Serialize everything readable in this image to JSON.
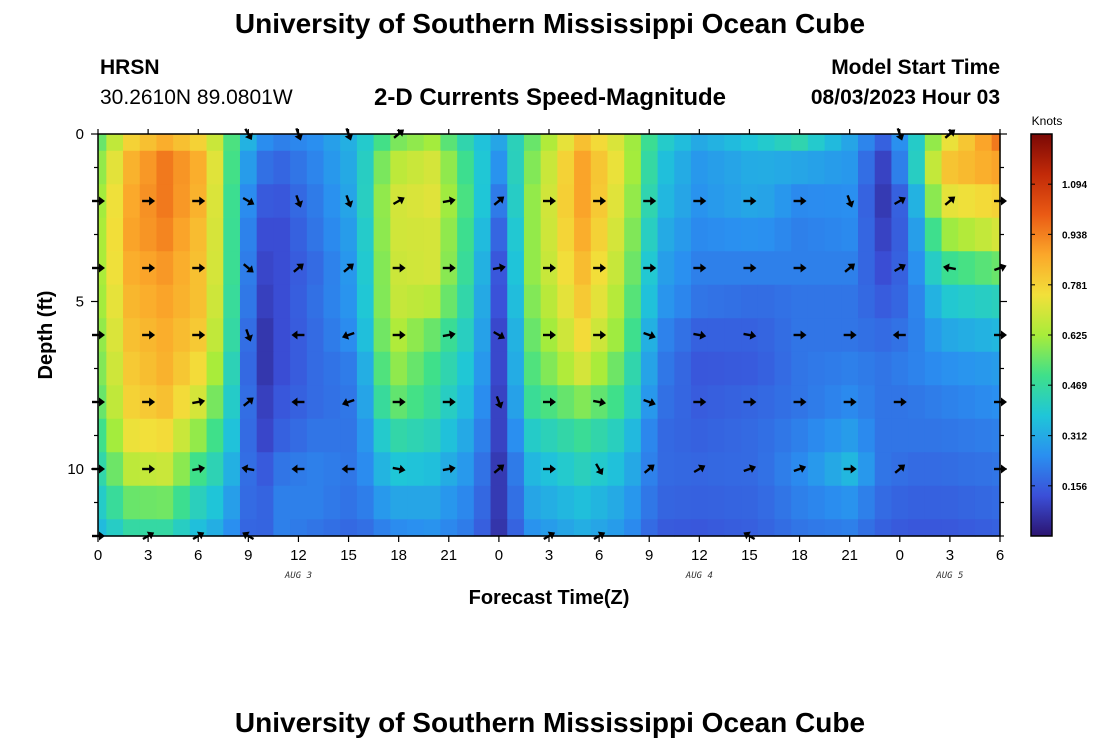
{
  "header": {
    "title": "University of Southern Mississippi Ocean Cube",
    "station_id": "HRSN",
    "station_coords": "30.2610N  89.0801W",
    "plot_title": "2-D Currents Speed-Magnitude",
    "model_start_label": "Model Start Time",
    "model_start_value": "08/03/2023 Hour 03"
  },
  "footer": {
    "title": "University of Southern Mississippi Ocean Cube"
  },
  "chart_data": {
    "type": "heatmap",
    "title": "2-D Currents Speed-Magnitude",
    "xlabel": "Forecast Time(Z)",
    "ylabel": "Depth (ft)",
    "xlim": [
      0,
      54
    ],
    "ylim": [
      0,
      12
    ],
    "x_ticks": [
      0,
      3,
      6,
      9,
      12,
      15,
      18,
      21,
      24,
      27,
      30,
      33,
      36,
      39,
      42,
      45,
      48,
      51,
      54
    ],
    "x_tick_labels": [
      "0",
      "3",
      "6",
      "9",
      "12",
      "15",
      "18",
      "21",
      "0",
      "3",
      "6",
      "9",
      "12",
      "15",
      "18",
      "21",
      "0",
      "3",
      "6"
    ],
    "y_ticks": [
      0,
      5,
      10
    ],
    "y_tick_labels": [
      "0",
      "5",
      "10"
    ],
    "date_labels": [
      {
        "x": 12,
        "text": "AUG 3"
      },
      {
        "x": 36,
        "text": "AUG 4"
      },
      {
        "x": 51,
        "text": "AUG 5"
      }
    ],
    "colorbar": {
      "units": "Knots",
      "ticks": [
        0.156,
        0.312,
        0.469,
        0.625,
        0.781,
        0.938,
        1.094
      ],
      "tick_labels": [
        "0.156",
        "0.312",
        "0.469",
        "0.625",
        "0.781",
        "0.938",
        "1.094"
      ],
      "range": [
        0,
        1.25
      ],
      "colors": [
        "#2b1470",
        "#3b4fd8",
        "#2a8ff0",
        "#1fc6d8",
        "#3fe08a",
        "#a8ec3a",
        "#f2e03a",
        "#fba72a",
        "#ea5a14",
        "#c22a08",
        "#7a0806"
      ]
    },
    "grid_times": [
      0,
      1,
      2,
      3,
      4,
      5,
      6,
      7,
      8,
      9,
      10,
      11,
      12,
      13,
      14,
      15,
      16,
      17,
      18,
      19,
      20,
      21,
      22,
      23,
      24,
      25,
      26,
      27,
      28,
      29,
      30,
      31,
      32,
      33,
      34,
      35,
      36,
      37,
      38,
      39,
      40,
      41,
      42,
      43,
      44,
      45,
      46,
      47,
      48,
      49,
      50,
      51,
      52,
      53,
      54
    ],
    "grid_depths": [
      0,
      1,
      2,
      3,
      4,
      5,
      6,
      7,
      8,
      9,
      10,
      11,
      12
    ],
    "speed_knots": [
      [
        0.55,
        0.78,
        0.86,
        0.78,
        0.63,
        0.4,
        0.26,
        0.22,
        0.25,
        0.34,
        0.56,
        0.62,
        0.4,
        0.3,
        0.55,
        0.82,
        0.68,
        0.42,
        0.31,
        0.38,
        0.44,
        0.3,
        0.16,
        0.3,
        0.7,
        0.95
      ],
      [
        0.6,
        0.85,
        0.95,
        0.86,
        0.65,
        0.36,
        0.2,
        0.17,
        0.23,
        0.33,
        0.65,
        0.7,
        0.44,
        0.26,
        0.58,
        0.88,
        0.7,
        0.38,
        0.27,
        0.32,
        0.3,
        0.27,
        0.1,
        0.28,
        0.8,
        0.88
      ],
      [
        0.62,
        0.87,
        0.95,
        0.85,
        0.64,
        0.34,
        0.15,
        0.14,
        0.21,
        0.32,
        0.69,
        0.72,
        0.46,
        0.21,
        0.6,
        0.88,
        0.68,
        0.36,
        0.26,
        0.31,
        0.24,
        0.25,
        0.08,
        0.2,
        0.72,
        0.78
      ],
      [
        0.63,
        0.88,
        0.93,
        0.83,
        0.64,
        0.33,
        0.12,
        0.12,
        0.2,
        0.3,
        0.69,
        0.7,
        0.44,
        0.17,
        0.6,
        0.86,
        0.66,
        0.33,
        0.24,
        0.26,
        0.22,
        0.24,
        0.1,
        0.18,
        0.6,
        0.7
      ],
      [
        0.63,
        0.86,
        0.9,
        0.82,
        0.64,
        0.33,
        0.1,
        0.12,
        0.18,
        0.29,
        0.68,
        0.7,
        0.42,
        0.14,
        0.6,
        0.83,
        0.64,
        0.3,
        0.22,
        0.22,
        0.22,
        0.22,
        0.12,
        0.18,
        0.48,
        0.55
      ],
      [
        0.62,
        0.84,
        0.88,
        0.82,
        0.62,
        0.33,
        0.08,
        0.12,
        0.19,
        0.28,
        0.68,
        0.65,
        0.4,
        0.13,
        0.58,
        0.8,
        0.61,
        0.28,
        0.2,
        0.18,
        0.2,
        0.2,
        0.15,
        0.18,
        0.38,
        0.42
      ],
      [
        0.6,
        0.82,
        0.86,
        0.8,
        0.6,
        0.32,
        0.05,
        0.12,
        0.18,
        0.26,
        0.66,
        0.55,
        0.38,
        0.11,
        0.55,
        0.76,
        0.58,
        0.24,
        0.16,
        0.16,
        0.2,
        0.2,
        0.18,
        0.2,
        0.3,
        0.34
      ],
      [
        0.58,
        0.8,
        0.85,
        0.76,
        0.56,
        0.3,
        0.05,
        0.12,
        0.18,
        0.22,
        0.62,
        0.5,
        0.35,
        0.11,
        0.52,
        0.7,
        0.52,
        0.22,
        0.14,
        0.15,
        0.2,
        0.22,
        0.2,
        0.22,
        0.25,
        0.28
      ],
      [
        0.55,
        0.78,
        0.82,
        0.7,
        0.5,
        0.3,
        0.07,
        0.14,
        0.18,
        0.21,
        0.56,
        0.47,
        0.32,
        0.1,
        0.48,
        0.58,
        0.48,
        0.2,
        0.15,
        0.17,
        0.2,
        0.24,
        0.2,
        0.2,
        0.22,
        0.25
      ],
      [
        0.5,
        0.74,
        0.76,
        0.6,
        0.45,
        0.28,
        0.08,
        0.16,
        0.2,
        0.2,
        0.46,
        0.42,
        0.28,
        0.1,
        0.4,
        0.48,
        0.4,
        0.18,
        0.16,
        0.18,
        0.22,
        0.28,
        0.2,
        0.2,
        0.2,
        0.22
      ],
      [
        0.45,
        0.66,
        0.68,
        0.5,
        0.4,
        0.25,
        0.12,
        0.2,
        0.22,
        0.2,
        0.38,
        0.36,
        0.25,
        0.08,
        0.34,
        0.42,
        0.35,
        0.18,
        0.17,
        0.18,
        0.24,
        0.34,
        0.2,
        0.18,
        0.18,
        0.2
      ],
      [
        0.4,
        0.55,
        0.56,
        0.42,
        0.35,
        0.22,
        0.14,
        0.22,
        0.22,
        0.19,
        0.3,
        0.3,
        0.22,
        0.08,
        0.3,
        0.36,
        0.3,
        0.17,
        0.16,
        0.17,
        0.22,
        0.26,
        0.18,
        0.16,
        0.16,
        0.18
      ],
      [
        0.35,
        0.46,
        0.46,
        0.36,
        0.3,
        0.2,
        0.14,
        0.22,
        0.2,
        0.17,
        0.24,
        0.26,
        0.2,
        0.07,
        0.26,
        0.32,
        0.27,
        0.15,
        0.14,
        0.16,
        0.2,
        0.22,
        0.16,
        0.14,
        0.14,
        0.16
      ]
    ],
    "speed_time_samples": [
      0,
      2,
      4,
      6,
      7.5,
      8.5,
      9.5,
      11,
      13,
      15.5,
      17.5,
      20,
      22.5,
      24,
      26,
      29,
      31.5,
      33.5,
      36,
      39.5,
      42,
      45,
      47,
      48.5,
      50.5,
      54
    ],
    "arrow_times": [
      0,
      3,
      6,
      9,
      12,
      15,
      18,
      21,
      24,
      27,
      30,
      33,
      36,
      39,
      42,
      45,
      48,
      51,
      54
    ],
    "arrow_depths": [
      0,
      2,
      4,
      6,
      8,
      10,
      12
    ],
    "arrow_directions_deg": [
      [
        null,
        null,
        null,
        300,
        290,
        290,
        40,
        null,
        null,
        null,
        null,
        null,
        null,
        null,
        null,
        null,
        290,
        40,
        null
      ],
      [
        0,
        0,
        0,
        330,
        290,
        290,
        30,
        10,
        40,
        0,
        0,
        0,
        0,
        0,
        0,
        290,
        30,
        40,
        0
      ],
      [
        0,
        0,
        0,
        320,
        40,
        40,
        0,
        0,
        10,
        0,
        0,
        0,
        0,
        0,
        0,
        40,
        30,
        170,
        20
      ],
      [
        0,
        0,
        0,
        290,
        180,
        200,
        0,
        10,
        330,
        0,
        0,
        340,
        350,
        350,
        0,
        0,
        180,
        null,
        0
      ],
      [
        0,
        0,
        10,
        40,
        180,
        200,
        0,
        0,
        290,
        0,
        350,
        340,
        0,
        0,
        0,
        0,
        0,
        null,
        0
      ],
      [
        0,
        0,
        10,
        170,
        180,
        180,
        350,
        10,
        40,
        0,
        300,
        40,
        30,
        20,
        20,
        0,
        40,
        null,
        0
      ],
      [
        0,
        30,
        30,
        150,
        null,
        null,
        null,
        null,
        null,
        30,
        30,
        null,
        null,
        150,
        null,
        null,
        null,
        null,
        null
      ]
    ]
  }
}
